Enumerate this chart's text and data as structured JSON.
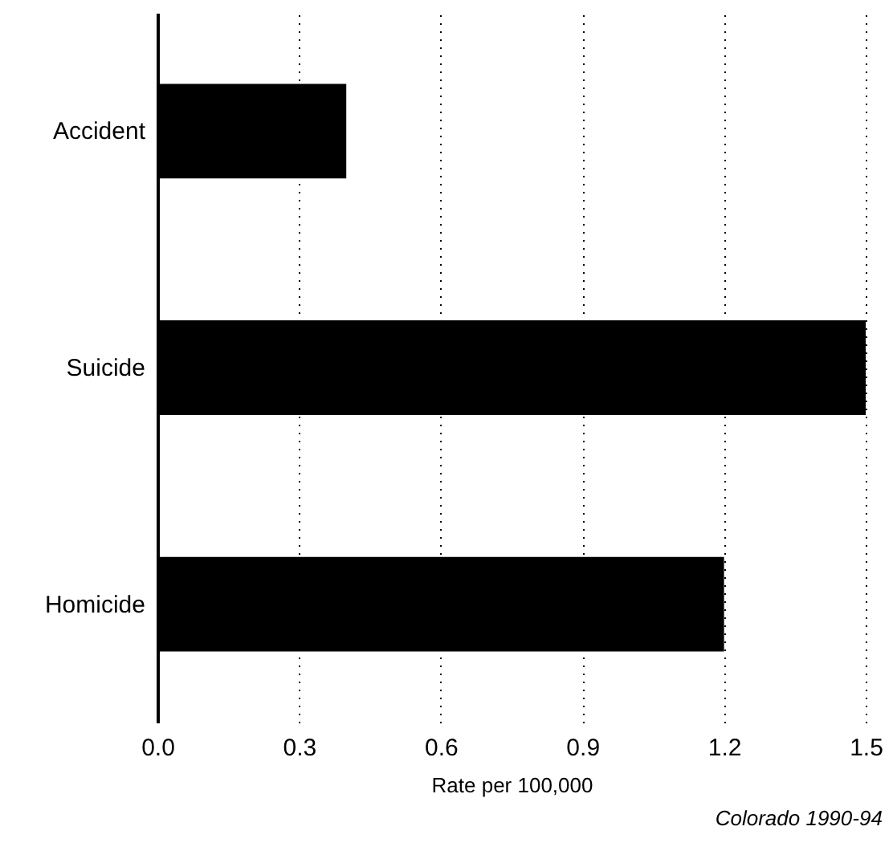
{
  "chart_data": {
    "type": "bar",
    "orientation": "horizontal",
    "categories": [
      "Accident",
      "Suicide",
      "Homicide"
    ],
    "values": [
      0.4,
      1.5,
      1.2
    ],
    "color": "#000000",
    "xlim": [
      0,
      1.5
    ],
    "xticks": [
      {
        "value": 0,
        "label": "0.0"
      },
      0.3,
      0.6,
      0.9,
      1.2,
      1.5
    ],
    "grid": "x",
    "xlabel": "Rate per 100,000",
    "annotations": [
      "Colorado 1990-94"
    ]
  }
}
